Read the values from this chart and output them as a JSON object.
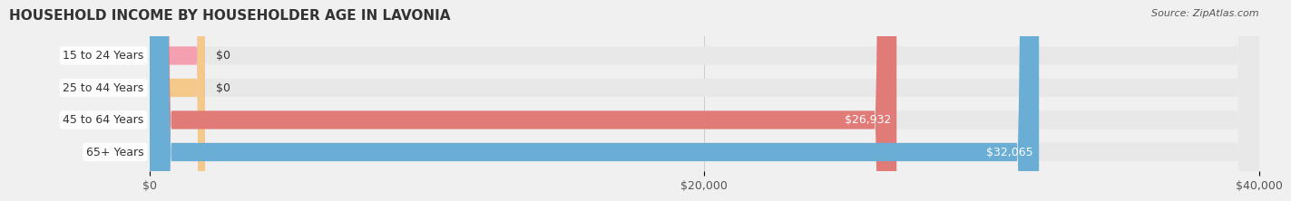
{
  "title": "HOUSEHOLD INCOME BY HOUSEHOLDER AGE IN LAVONIA",
  "source": "Source: ZipAtlas.com",
  "categories": [
    "15 to 24 Years",
    "25 to 44 Years",
    "45 to 64 Years",
    "65+ Years"
  ],
  "values": [
    0,
    0,
    26932,
    32065
  ],
  "bar_colors": [
    "#f4a0b0",
    "#f5c98a",
    "#e07b78",
    "#6aaed6"
  ],
  "label_colors": [
    "#555555",
    "#555555",
    "#ffffff",
    "#ffffff"
  ],
  "xlim": [
    0,
    40000
  ],
  "xticks": [
    0,
    20000,
    40000
  ],
  "xtick_labels": [
    "$0",
    "$20,000",
    "$40,000"
  ],
  "bar_height": 0.55,
  "background_color": "#f0f0f0",
  "bar_background_color": "#e8e8e8",
  "title_fontsize": 11,
  "source_fontsize": 8,
  "label_fontsize": 9,
  "tick_fontsize": 9,
  "category_fontsize": 9
}
